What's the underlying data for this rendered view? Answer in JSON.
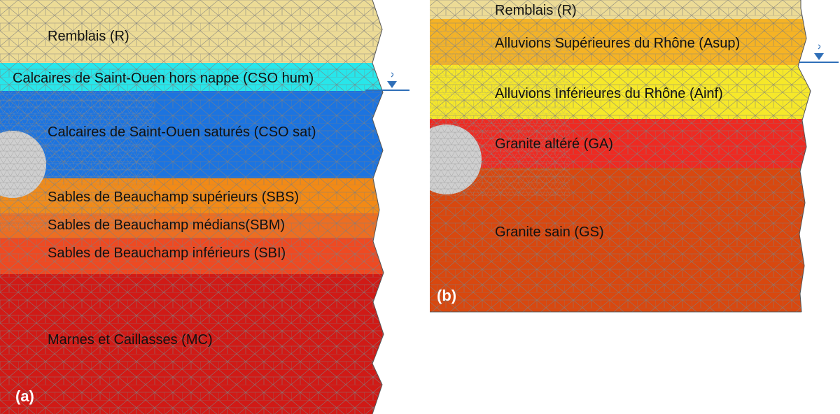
{
  "panel_a": {
    "tag": "(a)",
    "layers": [
      {
        "label": "Remblais (R)",
        "color": "#ecdb96"
      },
      {
        "label": "Calcaires de Saint-Ouen hors nappe (CSO hum)",
        "color": "#28e6ea"
      },
      {
        "label": "Calcaires de Saint-Ouen saturés (CSO sat)",
        "color": "#1c74e0"
      },
      {
        "label": "Sables de Beauchamp supérieurs (SBS)",
        "color": "#f28a16"
      },
      {
        "label": "Sables de Beauchamp médians(SBM)",
        "color": "#ec6e22"
      },
      {
        "label": "Sables de Beauchamp inférieurs (SBI)",
        "color": "#ee4a22"
      },
      {
        "label": "Marnes et Caillasses (MC)",
        "color": "#d01a16"
      }
    ]
  },
  "panel_b": {
    "tag": "(b)",
    "layers": [
      {
        "label": "Remblais (R)",
        "color": "#ecdb96"
      },
      {
        "label": "Alluvions Supérieures du Rhône (Asup)",
        "color": "#f5b325"
      },
      {
        "label": "Alluvions Inférieures du Rhône (Ainf)",
        "color": "#f6e82a"
      },
      {
        "label": "Granite altéré (GA)",
        "color": "#ee2a22"
      },
      {
        "label": "Granite sain (GS)",
        "color": "#d8480f"
      }
    ]
  },
  "colors": {
    "mesh": "#7f7f7f",
    "tunnel": "#cfcfcf",
    "water_table": "#2f6fb8"
  }
}
